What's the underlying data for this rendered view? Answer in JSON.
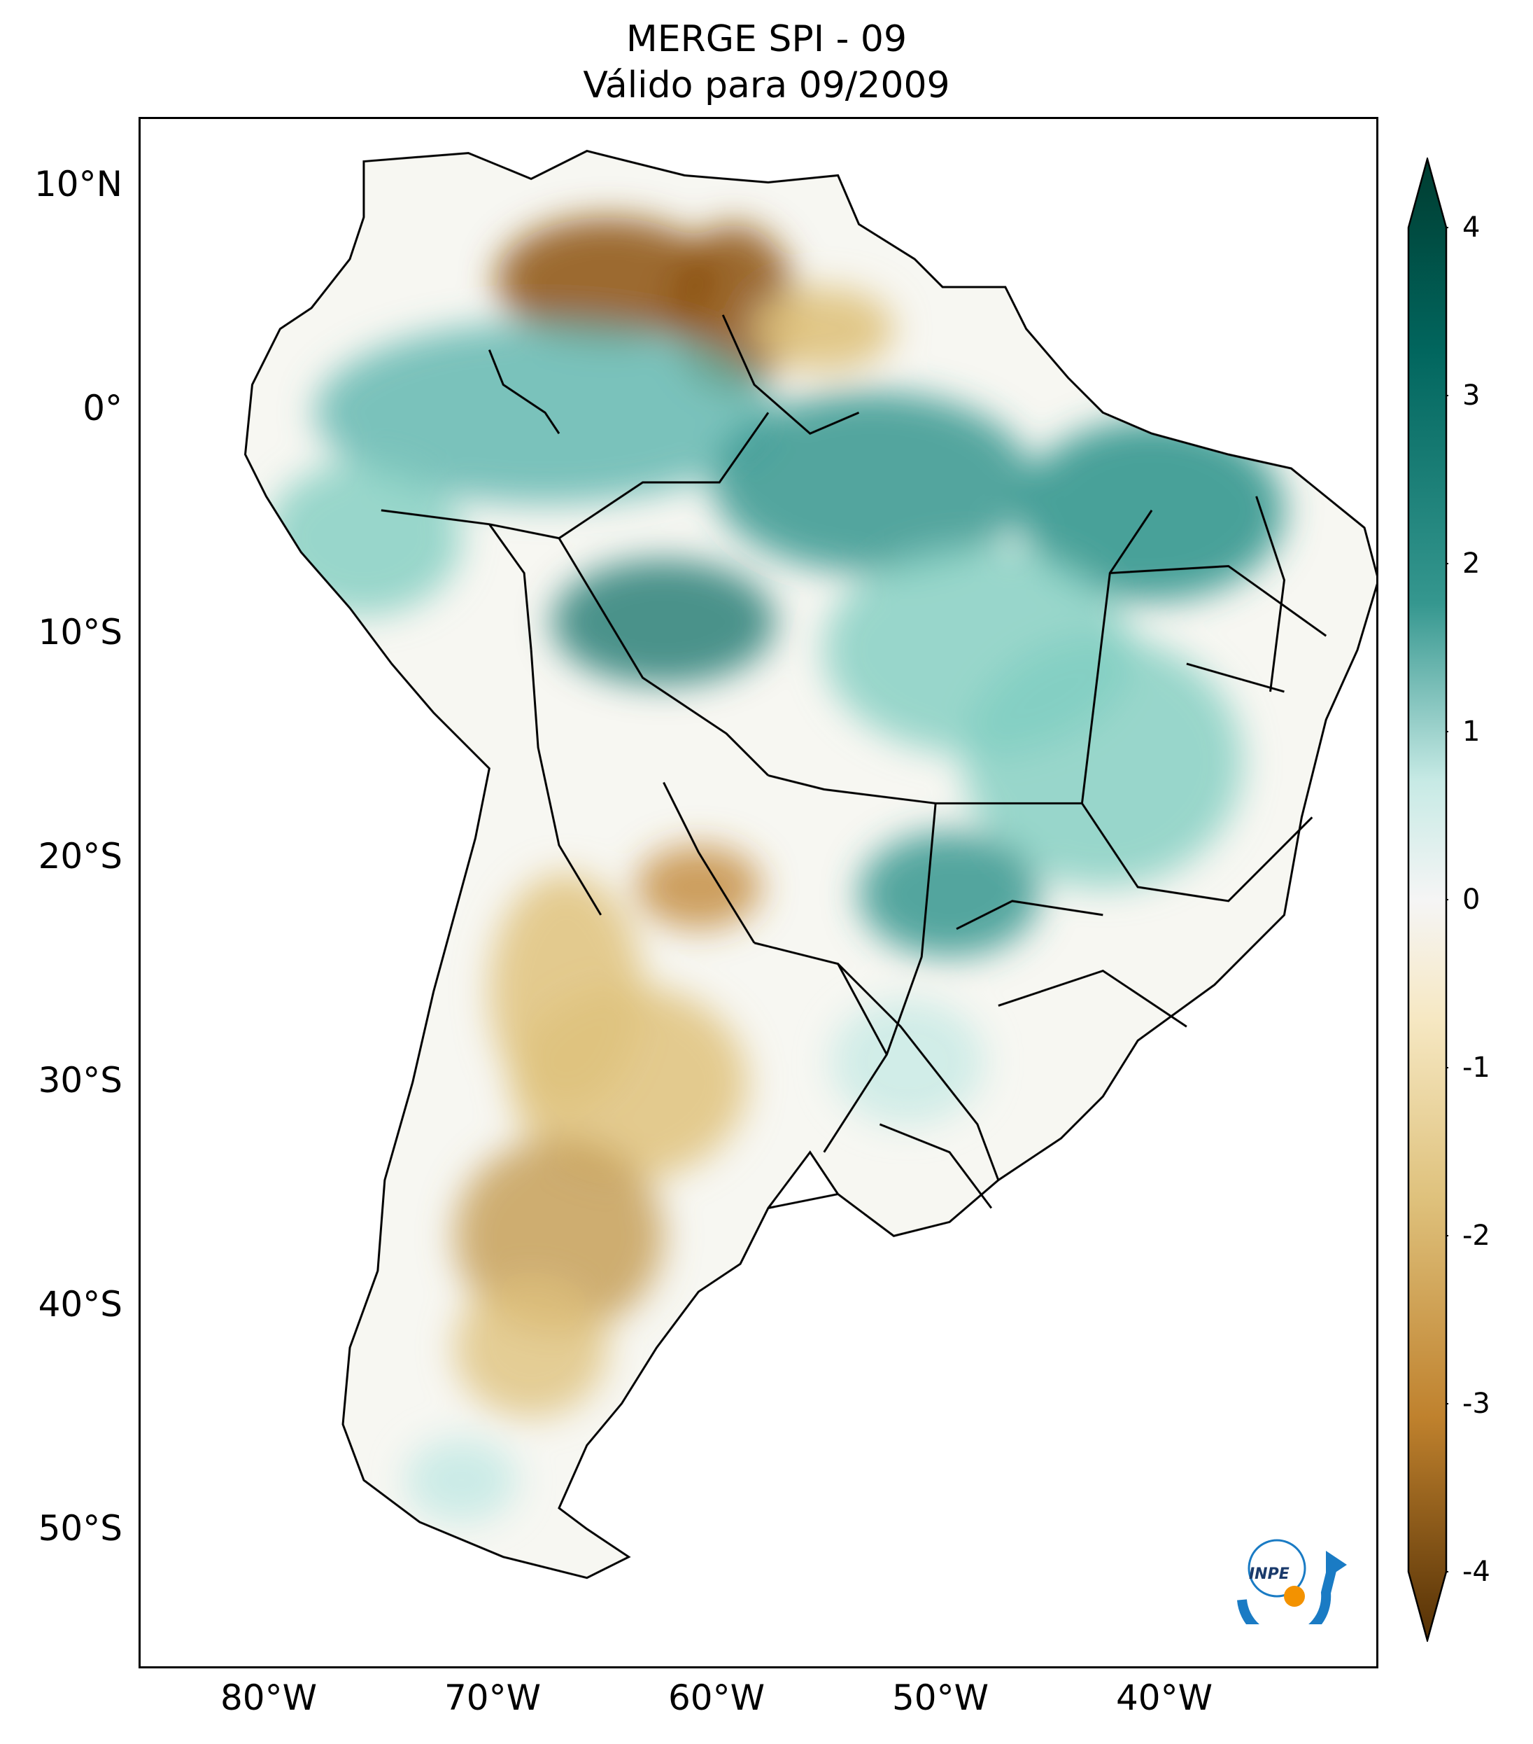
{
  "title": {
    "line1": "MERGE   SPI - 09",
    "line2": "Válido para 09/2009"
  },
  "axes": {
    "lat_ticks": [
      "10°N",
      "0°",
      "10°S",
      "20°S",
      "30°S",
      "40°S",
      "50°S"
    ],
    "lon_ticks": [
      "80°W",
      "70°W",
      "60°W",
      "50°W",
      "40°W"
    ],
    "extent": {
      "lon": [
        -85,
        -30
      ],
      "lat": [
        -56,
        13
      ]
    }
  },
  "colorbar": {
    "ticks": [
      "4",
      "3",
      "2",
      "1",
      "0",
      "-1",
      "-2",
      "-3",
      "-4"
    ],
    "range": [
      -4,
      4
    ],
    "extend": "both",
    "colors": {
      "dry_max": "#543005",
      "dry": "#bf812d",
      "neutral": "#f5f5f5",
      "wet": "#35978f",
      "wet_max": "#003c30"
    }
  },
  "logo": {
    "text": "INPE"
  }
}
